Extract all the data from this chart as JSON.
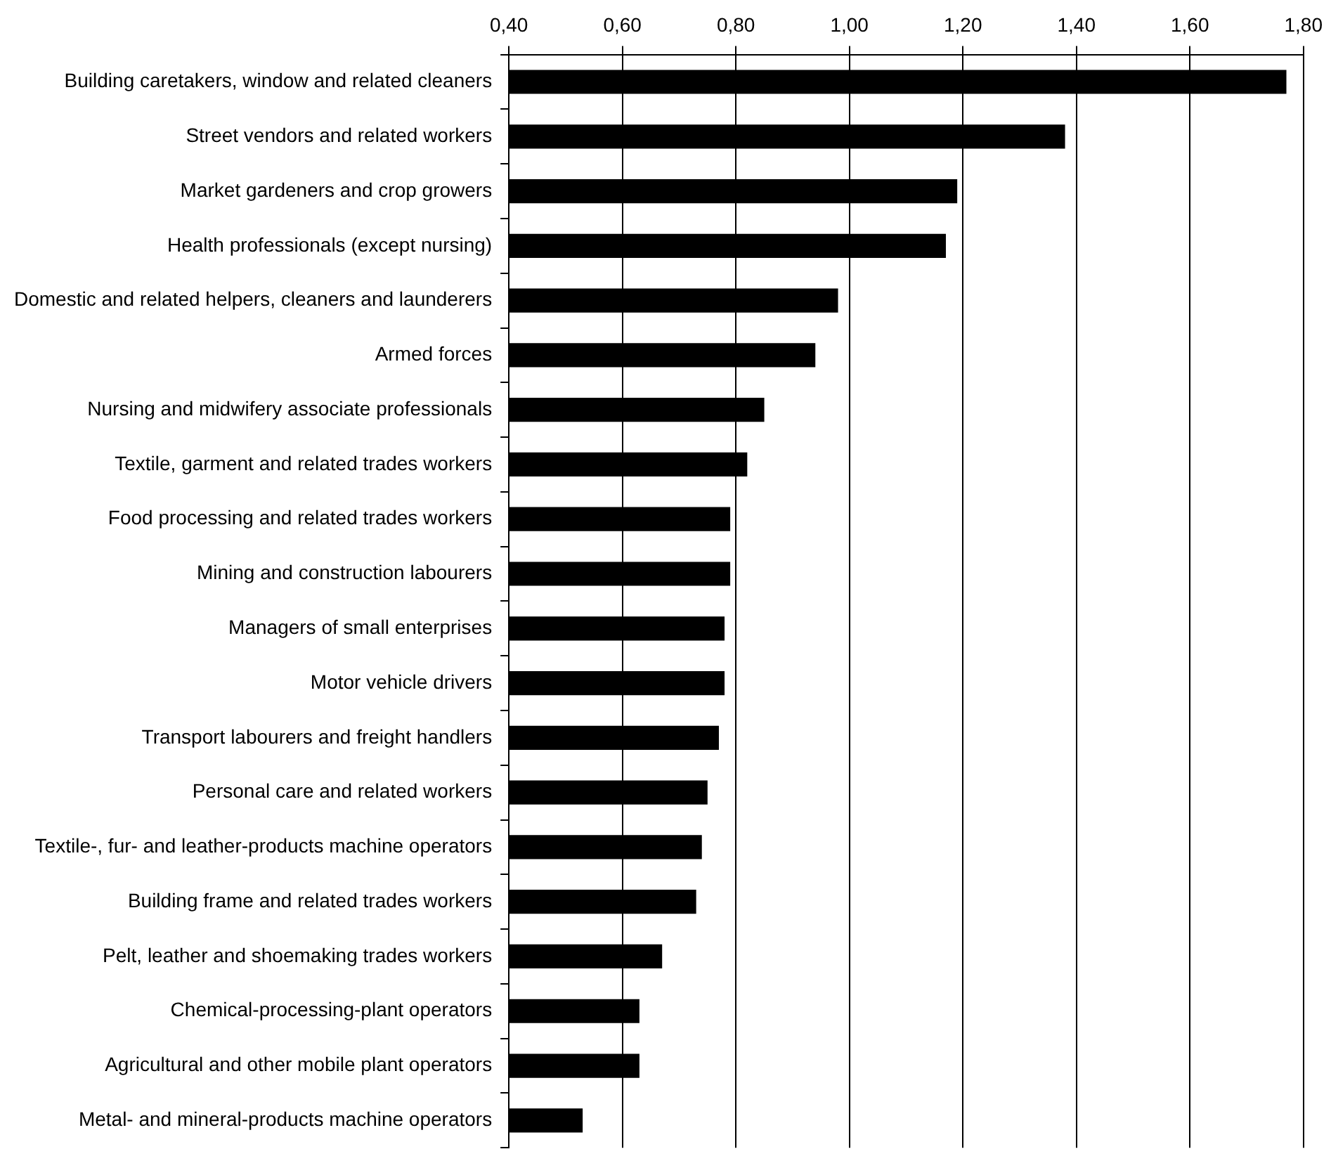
{
  "chart_data": {
    "type": "bar",
    "orientation": "horizontal",
    "categories": [
      "Building caretakers, window and related cleaners",
      "Street vendors and related workers",
      "Market gardeners and crop growers",
      "Health professionals (except nursing)",
      "Domestic and related helpers, cleaners and launderers",
      "Armed forces",
      "Nursing and midwifery associate professionals",
      "Textile, garment and related trades workers",
      "Food processing and related trades workers",
      "Mining and construction labourers",
      "Managers of small enterprises",
      "Motor vehicle drivers",
      "Transport labourers and freight handlers",
      "Personal care and related workers",
      "Textile-, fur- and leather-products machine operators",
      "Building frame and related trades workers",
      "Pelt, leather and shoemaking trades workers",
      "Chemical-processing-plant operators",
      "Agricultural and other mobile plant operators",
      "Metal- and mineral-products machine operators"
    ],
    "values": [
      1.77,
      1.38,
      1.19,
      1.17,
      0.98,
      0.94,
      0.85,
      0.82,
      0.79,
      0.79,
      0.78,
      0.78,
      0.77,
      0.75,
      0.74,
      0.73,
      0.67,
      0.63,
      0.63,
      0.53
    ],
    "color": "#000000",
    "xlim": [
      0.4,
      1.8
    ],
    "xticks": [
      {
        "value": 0.4,
        "label": "0,40"
      },
      {
        "value": 0.6,
        "label": "0,60"
      },
      {
        "value": 0.8,
        "label": "0,80"
      },
      {
        "value": 1.0,
        "label": "1,00"
      },
      {
        "value": 1.2,
        "label": "1,20"
      },
      {
        "value": 1.4,
        "label": "1,40"
      },
      {
        "value": 1.6,
        "label": "1,60"
      },
      {
        "value": 1.8,
        "label": "1,80"
      }
    ],
    "grid": "x",
    "legend": false
  }
}
